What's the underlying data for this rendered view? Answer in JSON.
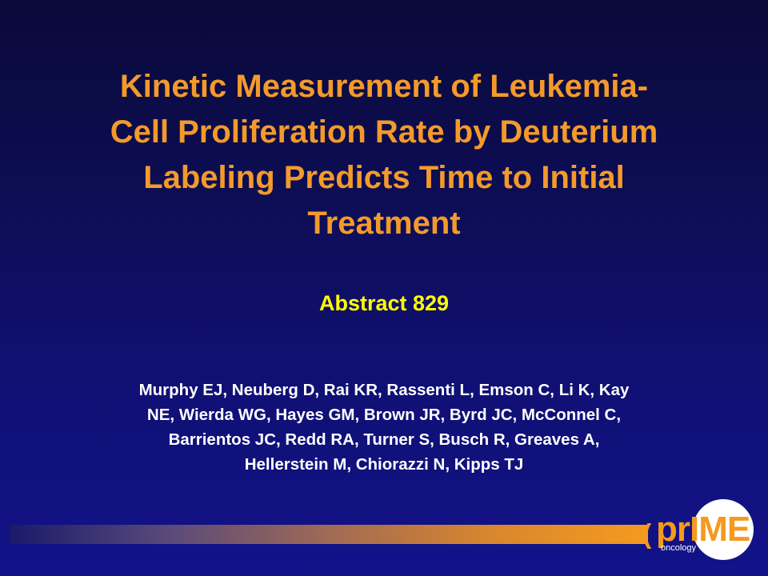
{
  "slide": {
    "title_lines": [
      "Kinetic Measurement of Leukemia-",
      "Cell Proliferation Rate by Deuterium",
      "Labeling Predicts Time to Initial",
      "Treatment"
    ],
    "abstract": "Abstract 829",
    "authors_lines": [
      "Murphy EJ, Neuberg D, Rai KR, Rassenti L, Emson C, Li K, Kay",
      "NE, Wierda WG, Hayes GM, Brown JR, Byrd JC, McConnel C,",
      "Barrientos JC,  Redd RA, Turner S, Busch R, Greaves A,",
      "Hellerstein  M, Chiorazzi N, Kipps TJ"
    ]
  },
  "logo": {
    "paren": "(",
    "word_pr": "pr",
    "word_i": "I",
    "word_me": "ME",
    "sub": "oncology"
  },
  "colors": {
    "title": "#f39a2b",
    "abstract": "#ffff00",
    "authors": "#ffffff",
    "background_top": "#0a0a3a",
    "background_bottom": "#12128a",
    "brand_orange": "#f59a1e"
  }
}
